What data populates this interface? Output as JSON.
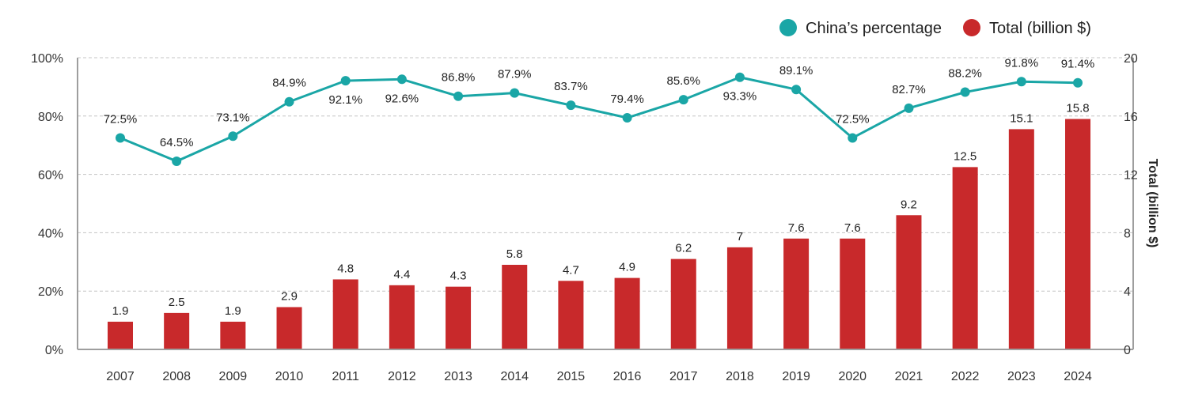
{
  "chart_data": {
    "type": "bar+line",
    "title": "",
    "categories": [
      "2007",
      "2008",
      "2009",
      "2010",
      "2011",
      "2012",
      "2013",
      "2014",
      "2015",
      "2016",
      "2017",
      "2018",
      "2019",
      "2020",
      "2021",
      "2022",
      "2023",
      "2024"
    ],
    "series": [
      {
        "name": "Total (billion $)",
        "type": "bar",
        "axis": "right",
        "color": "#c8292b",
        "values": [
          1.9,
          2.5,
          1.9,
          2.9,
          4.8,
          4.4,
          4.3,
          5.8,
          4.7,
          4.9,
          6.2,
          7,
          7.6,
          7.6,
          9.2,
          12.5,
          15.1,
          15.8
        ],
        "labels": [
          "1.9",
          "2.5",
          "1.9",
          "2.9",
          "4.8",
          "4.4",
          "4.3",
          "5.8",
          "4.7",
          "4.9",
          "6.2",
          "7",
          "7.6",
          "7.6",
          "9.2",
          "12.5",
          "15.1",
          "15.8"
        ]
      },
      {
        "name": "China’s percentage",
        "type": "line",
        "axis": "left",
        "color": "#1aa6a6",
        "values": [
          72.5,
          64.5,
          73.1,
          84.9,
          92.1,
          92.6,
          86.8,
          87.9,
          83.7,
          79.4,
          85.6,
          93.3,
          89.1,
          72.5,
          82.7,
          88.2,
          91.8,
          91.4
        ],
        "labels": [
          "72.5%",
          "64.5%",
          "73.1%",
          "84.9%",
          "92.1%",
          "92.6%",
          "86.8%",
          "87.9%",
          "83.7%",
          "79.4%",
          "85.6%",
          "93.3%",
          "89.1%",
          "72.5%",
          "82.7%",
          "88.2%",
          "91.8%",
          "91.4%"
        ],
        "label_position": [
          "above",
          "above",
          "above",
          "above",
          "below",
          "below",
          "above",
          "above",
          "above",
          "above",
          "above",
          "below",
          "above",
          "above",
          "above",
          "above",
          "above",
          "above"
        ]
      }
    ],
    "y_left": {
      "label": "",
      "range": [
        0,
        100
      ],
      "ticks": [
        0,
        20,
        40,
        60,
        80,
        100
      ],
      "tick_labels": [
        "0%",
        "20%",
        "40%",
        "60%",
        "80%",
        "100%"
      ]
    },
    "y_right": {
      "label": "Total (billion $)",
      "range": [
        0,
        20
      ],
      "ticks": [
        0,
        4,
        8,
        12,
        16,
        20
      ],
      "tick_labels": [
        "0",
        "4",
        "8",
        "12",
        "16",
        "20"
      ]
    },
    "xlabel": "",
    "grid": true,
    "legend": {
      "position": "top-right",
      "items": [
        {
          "label": "China’s percentage",
          "color": "#1aa6a6"
        },
        {
          "label": "Total (billion $)",
          "color": "#c8292b"
        }
      ]
    }
  }
}
